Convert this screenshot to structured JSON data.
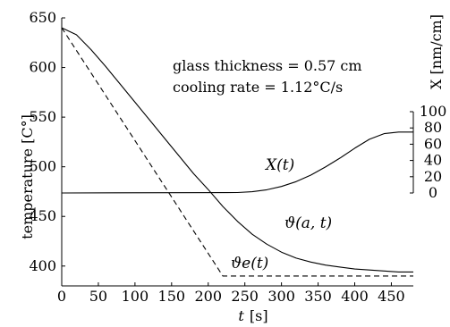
{
  "chart_data": {
    "type": "line",
    "xlabel": {
      "symbol": "t",
      "unit": "[s]"
    },
    "ylabel": "temperature [C°]",
    "y2label": "X  [nm/cm]",
    "xlim": [
      0,
      480
    ],
    "ylim": [
      380,
      650
    ],
    "y2lim": [
      0,
      100
    ],
    "x_ticks": [
      0,
      50,
      100,
      150,
      200,
      250,
      300,
      350,
      400,
      450
    ],
    "y_ticks": [
      400,
      450,
      500,
      550,
      600,
      650
    ],
    "y2_ticks": [
      0,
      20,
      40,
      60,
      80,
      100
    ],
    "annotations": [
      "glass thickness = 0.57 cm",
      "cooling rate = 1.12°C/s"
    ],
    "series": [
      {
        "label": "ϑ(a, t)",
        "axis": "left",
        "style": "solid",
        "x": [
          0,
          20,
          40,
          60,
          80,
          100,
          120,
          140,
          160,
          180,
          200,
          220,
          240,
          260,
          280,
          300,
          320,
          340,
          360,
          380,
          400,
          420,
          440,
          460,
          480
        ],
        "y": [
          640,
          633,
          618,
          601,
          583,
          565,
          547,
          529,
          511,
          493,
          477,
          460,
          445,
          432,
          422,
          414,
          408,
          404,
          401,
          399,
          397,
          396,
          395,
          394,
          394
        ]
      },
      {
        "label": "ϑe(t)",
        "axis": "left",
        "style": "dashed",
        "x": [
          0,
          220,
          480
        ],
        "y": [
          640,
          390,
          390
        ]
      },
      {
        "label": "X(t)",
        "axis": "right",
        "style": "solid",
        "x": [
          0,
          240,
          260,
          280,
          300,
          320,
          340,
          360,
          380,
          400,
          420,
          440,
          460,
          480
        ],
        "y": [
          0,
          0.5,
          1.5,
          4,
          8,
          14,
          22,
          32,
          43,
          55,
          66,
          73,
          75,
          75
        ]
      }
    ]
  }
}
